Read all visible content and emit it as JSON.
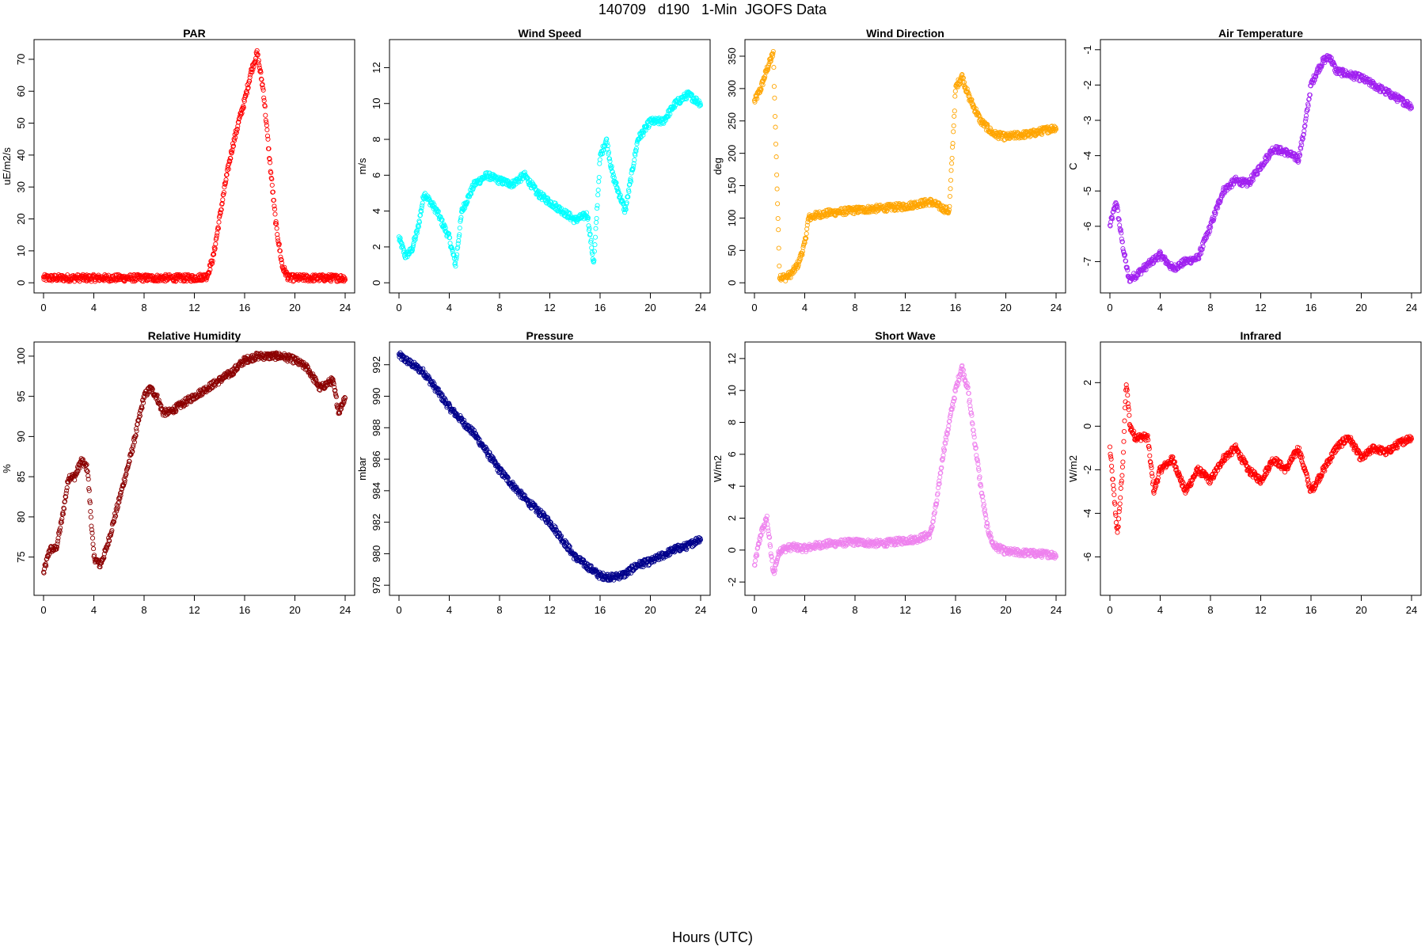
{
  "page": {
    "title": "140709   d190   1-Min  JGOFS Data",
    "xlabel": "Hours (UTC)"
  },
  "chart_data": [
    {
      "type": "scatter",
      "title": "PAR",
      "ylabel": "uE/m2/s",
      "color": "#ff0000",
      "xlim": [
        0,
        24
      ],
      "ylim": [
        0,
        73
      ],
      "xticks": [
        0,
        4,
        8,
        12,
        16,
        20,
        24
      ],
      "yticks": [
        0,
        10,
        20,
        30,
        40,
        50,
        60,
        70
      ],
      "x": [
        0,
        4,
        8,
        12,
        13,
        13.5,
        14,
        14.5,
        15,
        15.5,
        16,
        16.5,
        17,
        17.5,
        18,
        18.5,
        19,
        19.5,
        20,
        22,
        24
      ],
      "y": [
        1.5,
        1.5,
        1.5,
        1.5,
        2,
        8,
        20,
        32,
        42,
        50,
        57,
        66,
        72,
        60,
        38,
        18,
        5,
        1.5,
        1.5,
        1.5,
        1.5
      ]
    },
    {
      "type": "scatter",
      "title": "Wind Speed",
      "ylabel": "m/s",
      "color": "#00ffff",
      "xlim": [
        0,
        24
      ],
      "ylim": [
        0,
        13
      ],
      "xticks": [
        0,
        4,
        8,
        12,
        16,
        20,
        24
      ],
      "yticks": [
        0,
        2,
        4,
        6,
        8,
        10,
        12
      ],
      "x": [
        0,
        0.5,
        1,
        1.5,
        2,
        3,
        4,
        4.5,
        5,
        6,
        7,
        8,
        9,
        10,
        11,
        12,
        13,
        14,
        15,
        15.5,
        16,
        16.5,
        17,
        18,
        19,
        20,
        21,
        22,
        23,
        24
      ],
      "y": [
        2.5,
        1.5,
        1.8,
        3,
        5,
        4,
        2.5,
        1,
        4,
        5.5,
        6,
        5.7,
        5.5,
        6,
        5,
        4.5,
        4,
        3.5,
        3.8,
        1,
        7,
        8,
        6,
        4,
        8,
        9,
        9,
        10,
        10.5,
        10
      ]
    },
    {
      "type": "scatter",
      "title": "Wind Direction",
      "ylabel": "deg",
      "color": "#ffa500",
      "xlim": [
        0,
        24
      ],
      "ylim": [
        0,
        360
      ],
      "xticks": [
        0,
        4,
        8,
        12,
        16,
        20,
        24
      ],
      "yticks": [
        0,
        50,
        100,
        150,
        200,
        250,
        300,
        350
      ],
      "x": [
        0,
        0.5,
        1,
        1.5,
        2,
        2.5,
        3,
        3.5,
        4,
        4.3,
        5,
        6,
        8,
        10,
        12,
        13,
        14,
        15,
        15.5,
        16,
        16.5,
        17,
        18,
        19,
        20,
        21,
        22,
        23,
        24
      ],
      "y": [
        280,
        300,
        330,
        355,
        10,
        8,
        15,
        30,
        60,
        100,
        105,
        108,
        112,
        115,
        118,
        122,
        125,
        115,
        110,
        300,
        320,
        290,
        250,
        230,
        225,
        228,
        230,
        235,
        240
      ]
    },
    {
      "type": "scatter",
      "title": "Air Temperature",
      "ylabel": "C",
      "color": "#a020f0",
      "xlim": [
        0,
        24
      ],
      "ylim": [
        -7.6,
        -1.0
      ],
      "xticks": [
        0,
        4,
        8,
        12,
        16,
        20,
        24
      ],
      "yticks": [
        -7,
        -6,
        -5,
        -4,
        -3,
        -2,
        -1
      ],
      "x": [
        0,
        0.5,
        1,
        1.5,
        2,
        3,
        4,
        5,
        6,
        7,
        8,
        9,
        10,
        11,
        12,
        13,
        14,
        15,
        15.5,
        16,
        16.5,
        17,
        17.5,
        18,
        19,
        20,
        21,
        22,
        23,
        24
      ],
      "y": [
        -6,
        -5.3,
        -6.5,
        -7.5,
        -7.4,
        -7.1,
        -6.8,
        -7.2,
        -7,
        -6.9,
        -6,
        -5,
        -4.7,
        -4.8,
        -4.3,
        -3.8,
        -3.9,
        -4.1,
        -3.2,
        -2,
        -1.6,
        -1.3,
        -1.2,
        -1.6,
        -1.7,
        -1.8,
        -2,
        -2.2,
        -2.4,
        -2.6
      ]
    },
    {
      "type": "scatter",
      "title": "Relative Humidity",
      "ylabel": "%",
      "color": "#8b0000",
      "xlim": [
        0,
        24
      ],
      "ylim": [
        71.5,
        100.5
      ],
      "xticks": [
        0,
        4,
        8,
        12,
        16,
        20,
        24
      ],
      "yticks": [
        75,
        80,
        85,
        90,
        95,
        100
      ],
      "x": [
        0,
        0.5,
        1,
        1.5,
        2,
        2.5,
        3,
        3.5,
        4,
        4.5,
        5,
        6,
        7,
        8,
        8.5,
        9,
        9.5,
        10,
        11,
        12,
        13,
        14,
        15,
        16,
        17,
        18,
        19,
        20,
        21,
        22,
        23,
        23.5,
        24
      ],
      "y": [
        73,
        76,
        76,
        80,
        85,
        85,
        87,
        86,
        75,
        74,
        76,
        82,
        88,
        95,
        96,
        95,
        93,
        93,
        94,
        95,
        96,
        97,
        98,
        99.5,
        100,
        100,
        100,
        99.5,
        98.5,
        96,
        97,
        93,
        95
      ]
    },
    {
      "type": "scatter",
      "title": "Pressure",
      "ylabel": "mbar",
      "color": "#00008b",
      "xlim": [
        0,
        24
      ],
      "ylim": [
        978,
        992.8
      ],
      "xticks": [
        0,
        4,
        8,
        12,
        16,
        20,
        24
      ],
      "yticks": [
        978,
        980,
        982,
        984,
        986,
        988,
        990,
        992
      ],
      "x": [
        0,
        2,
        4,
        6,
        8,
        10,
        12,
        14,
        16,
        17,
        18,
        19,
        20,
        21,
        22,
        23,
        24
      ],
      "y": [
        992.6,
        991.5,
        989.3,
        987.6,
        985.3,
        983.5,
        982.0,
        979.8,
        978.6,
        978.5,
        978.7,
        979.3,
        979.5,
        979.9,
        980.3,
        980.5,
        981.0
      ]
    },
    {
      "type": "scatter",
      "title": "Short Wave",
      "ylabel": "W/m2",
      "color": "#ee82ee",
      "xlim": [
        0,
        24
      ],
      "ylim": [
        -2.2,
        12.4
      ],
      "xticks": [
        0,
        4,
        8,
        12,
        16,
        20,
        24
      ],
      "yticks": [
        -2,
        0,
        2,
        4,
        6,
        8,
        10,
        12
      ],
      "x": [
        0,
        0.5,
        1,
        1.5,
        2,
        3,
        4,
        5,
        6,
        8,
        10,
        12,
        13,
        14,
        14.5,
        15,
        15.5,
        16,
        16.5,
        17,
        17.5,
        18,
        18.5,
        19,
        20,
        22,
        24
      ],
      "y": [
        -1,
        1,
        2,
        -1.5,
        0,
        0.2,
        0.1,
        0.3,
        0.4,
        0.5,
        0.4,
        0.6,
        0.7,
        1,
        3,
        6,
        8,
        10,
        11.5,
        10,
        7,
        4,
        1.5,
        0.3,
        -0.1,
        -0.2,
        -0.3
      ]
    },
    {
      "type": "scatter",
      "title": "Infrared",
      "ylabel": "W/m2",
      "color": "#ff0000",
      "xlim": [
        0,
        24
      ],
      "ylim": [
        -7.3,
        3.4
      ],
      "xticks": [
        0,
        4,
        8,
        12,
        16,
        20,
        24
      ],
      "yticks": [
        -6,
        -4,
        -2,
        0,
        2
      ],
      "x": [
        0,
        0.3,
        0.6,
        1,
        1.3,
        1.6,
        2,
        3,
        3.5,
        4,
        5,
        6,
        7,
        8,
        9,
        10,
        11,
        12,
        13,
        14,
        15,
        16,
        17,
        18,
        19,
        20,
        21,
        22,
        23,
        24
      ],
      "y": [
        -1,
        -3,
        -5,
        -2,
        2,
        0,
        -0.5,
        -0.5,
        -3,
        -2,
        -1.5,
        -3,
        -2,
        -2.5,
        -1.5,
        -1,
        -2,
        -2.5,
        -1.5,
        -2,
        -1,
        -3,
        -2,
        -1,
        -0.5,
        -1.5,
        -1,
        -1.2,
        -0.8,
        -0.5
      ]
    }
  ]
}
